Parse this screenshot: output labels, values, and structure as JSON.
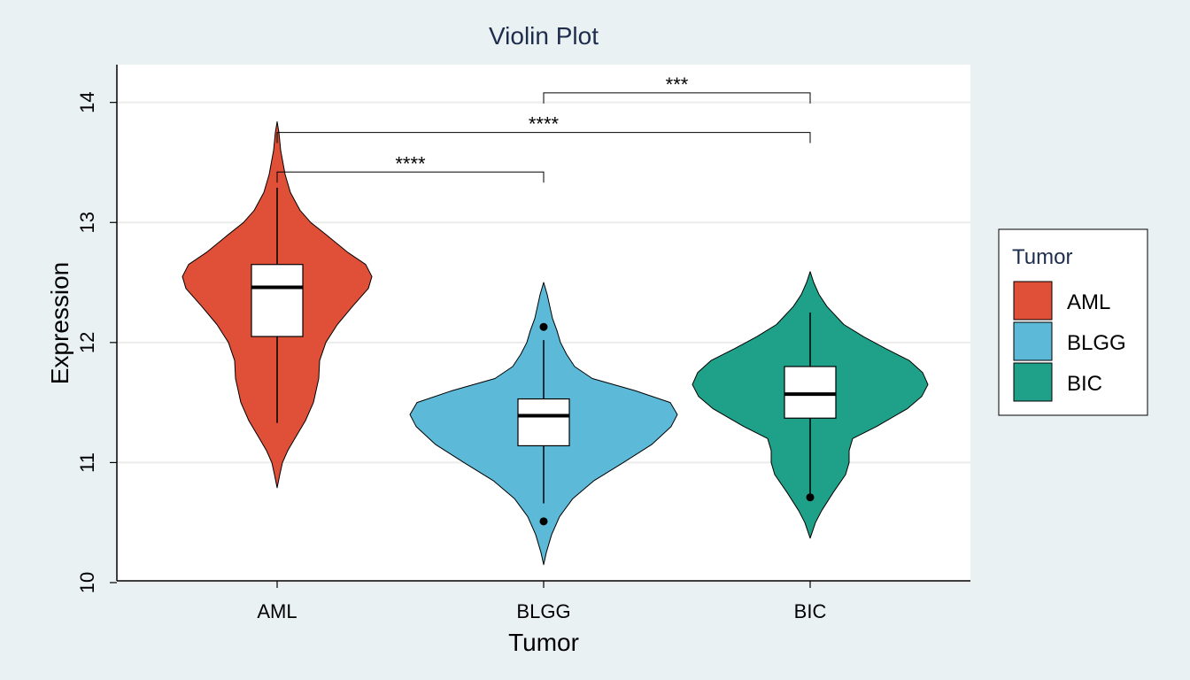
{
  "chart_data": {
    "type": "violin",
    "title": "Violin Plot",
    "xlabel": "Tumor",
    "ylabel": "Expression",
    "categories": [
      "AML",
      "BLGG",
      "BIC"
    ],
    "ylim": [
      10,
      14.3
    ],
    "yticks": [
      "10",
      "11",
      "12",
      "13",
      "14"
    ],
    "grid": true,
    "legend": {
      "title": "Tumor",
      "position": "right",
      "entries": [
        {
          "label": "AML",
          "color": "#e05038"
        },
        {
          "label": "BLGG",
          "color": "#5cb9d8"
        },
        {
          "label": "BIC",
          "color": "#1fa088"
        }
      ]
    },
    "series": [
      {
        "category": "AML",
        "color": "#e05038",
        "min": 11.33,
        "q1": 12.05,
        "median": 12.46,
        "q3": 12.65,
        "max": 13.29,
        "outliers": [],
        "violin_range": [
          10.79,
          13.84
        ],
        "density": [
          [
            10.79,
            0
          ],
          [
            10.9,
            3
          ],
          [
            11.0,
            6
          ],
          [
            11.1,
            12
          ],
          [
            11.2,
            20
          ],
          [
            11.35,
            32
          ],
          [
            11.5,
            41
          ],
          [
            11.7,
            47
          ],
          [
            11.85,
            48
          ],
          [
            12.0,
            55
          ],
          [
            12.15,
            68
          ],
          [
            12.3,
            85
          ],
          [
            12.45,
            103
          ],
          [
            12.55,
            107
          ],
          [
            12.65,
            100
          ],
          [
            12.75,
            80
          ],
          [
            12.9,
            55
          ],
          [
            13.0,
            38
          ],
          [
            13.1,
            26
          ],
          [
            13.25,
            15
          ],
          [
            13.4,
            9
          ],
          [
            13.6,
            4
          ],
          [
            13.75,
            2
          ],
          [
            13.84,
            0
          ]
        ]
      },
      {
        "category": "BLGG",
        "color": "#5cb9d8",
        "min": 10.66,
        "q1": 11.14,
        "median": 11.39,
        "q3": 11.53,
        "max": 12.02,
        "outliers": [
          12.13,
          10.51
        ],
        "violin_range": [
          10.15,
          12.5
        ],
        "density": [
          [
            10.15,
            0
          ],
          [
            10.25,
            3
          ],
          [
            10.4,
            9
          ],
          [
            10.55,
            18
          ],
          [
            10.7,
            33
          ],
          [
            10.85,
            57
          ],
          [
            11.0,
            90
          ],
          [
            11.15,
            122
          ],
          [
            11.3,
            144
          ],
          [
            11.4,
            151
          ],
          [
            11.5,
            143
          ],
          [
            11.6,
            103
          ],
          [
            11.7,
            55
          ],
          [
            11.8,
            35
          ],
          [
            11.9,
            26
          ],
          [
            12.0,
            19
          ],
          [
            12.1,
            15
          ],
          [
            12.2,
            10
          ],
          [
            12.3,
            7
          ],
          [
            12.4,
            4
          ],
          [
            12.5,
            0
          ]
        ]
      },
      {
        "category": "BIC",
        "color": "#1fa088",
        "min": 10.71,
        "q1": 11.37,
        "median": 11.57,
        "q3": 11.8,
        "max": 12.25,
        "outliers": [
          10.71
        ],
        "violin_range": [
          10.37,
          12.59
        ],
        "density": [
          [
            10.37,
            0
          ],
          [
            10.5,
            6
          ],
          [
            10.6,
            13
          ],
          [
            10.75,
            26
          ],
          [
            10.9,
            40
          ],
          [
            11.0,
            44
          ],
          [
            11.1,
            44
          ],
          [
            11.2,
            48
          ],
          [
            11.3,
            75
          ],
          [
            11.45,
            110
          ],
          [
            11.55,
            126
          ],
          [
            11.65,
            133
          ],
          [
            11.75,
            127
          ],
          [
            11.85,
            112
          ],
          [
            11.95,
            85
          ],
          [
            12.05,
            60
          ],
          [
            12.15,
            38
          ],
          [
            12.3,
            19
          ],
          [
            12.4,
            10
          ],
          [
            12.5,
            4
          ],
          [
            12.59,
            0
          ]
        ]
      }
    ],
    "annotations": [
      {
        "from": "AML",
        "to": "BLGG",
        "label": "****",
        "y": 13.42
      },
      {
        "from": "AML",
        "to": "BIC",
        "label": "****",
        "y": 13.75
      },
      {
        "from": "BLGG",
        "to": "BIC",
        "label": "***",
        "y": 14.08
      }
    ]
  }
}
